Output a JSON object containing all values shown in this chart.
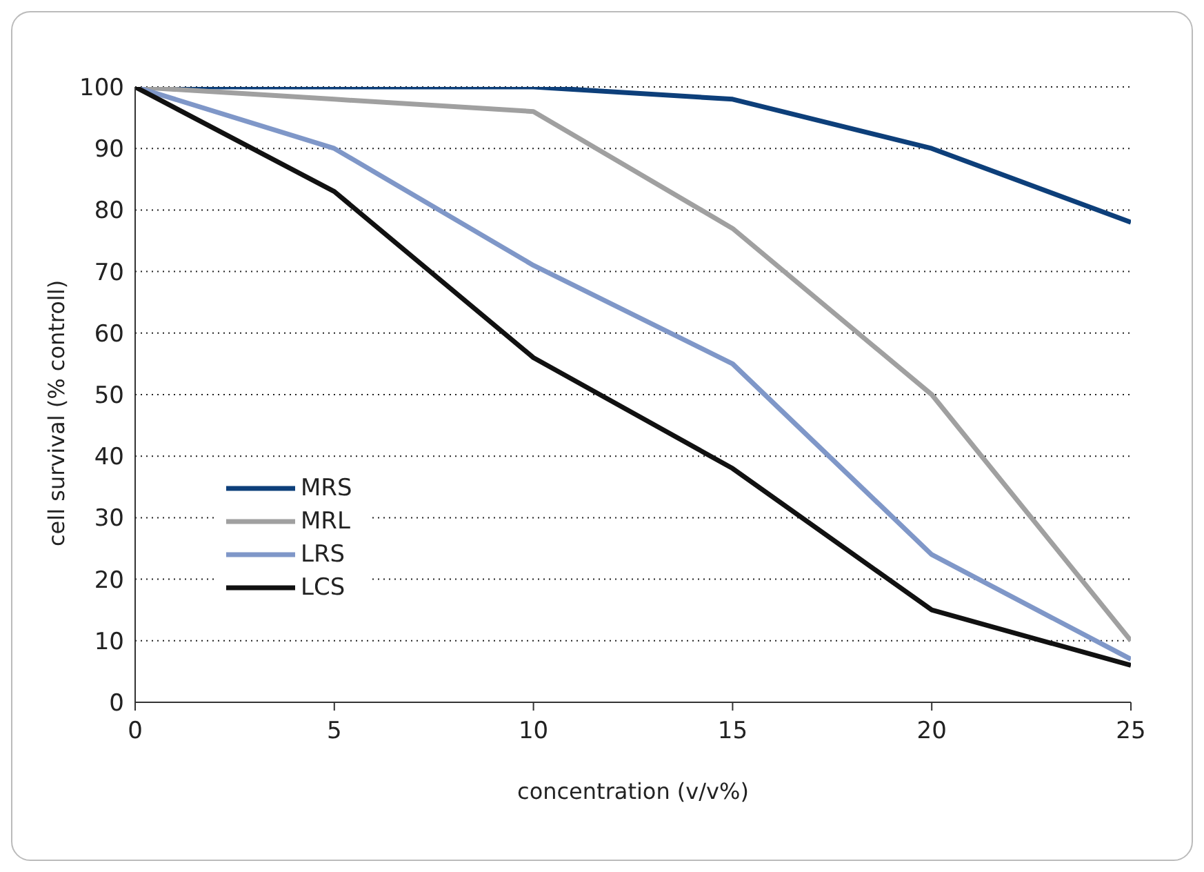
{
  "chart_data": {
    "type": "line",
    "xlabel": "concentration (v/v%)",
    "ylabel": "cell survival (% controll)",
    "x": [
      0,
      5,
      10,
      15,
      20,
      25
    ],
    "series": [
      {
        "name": "MRS",
        "color": "#0d3f7a",
        "values": [
          100,
          100,
          100,
          98,
          90,
          78
        ]
      },
      {
        "name": "MRL",
        "color": "#a0a0a0",
        "values": [
          100,
          98,
          96,
          77,
          50,
          10
        ]
      },
      {
        "name": "LRS",
        "color": "#7f97c8",
        "values": [
          100,
          90,
          71,
          55,
          24,
          7
        ]
      },
      {
        "name": "LCS",
        "color": "#111111",
        "values": [
          100,
          83,
          56,
          38,
          15,
          6
        ]
      }
    ],
    "xlim": [
      0,
      25
    ],
    "xticks": [
      0,
      5,
      10,
      15,
      20,
      25
    ],
    "ylim": [
      0,
      100
    ],
    "yticks": [
      0,
      10,
      20,
      30,
      40,
      50,
      60,
      70,
      80,
      90,
      100
    ],
    "grid": "y",
    "legend": "bottom left",
    "marker": "none",
    "line_style": "solid"
  }
}
